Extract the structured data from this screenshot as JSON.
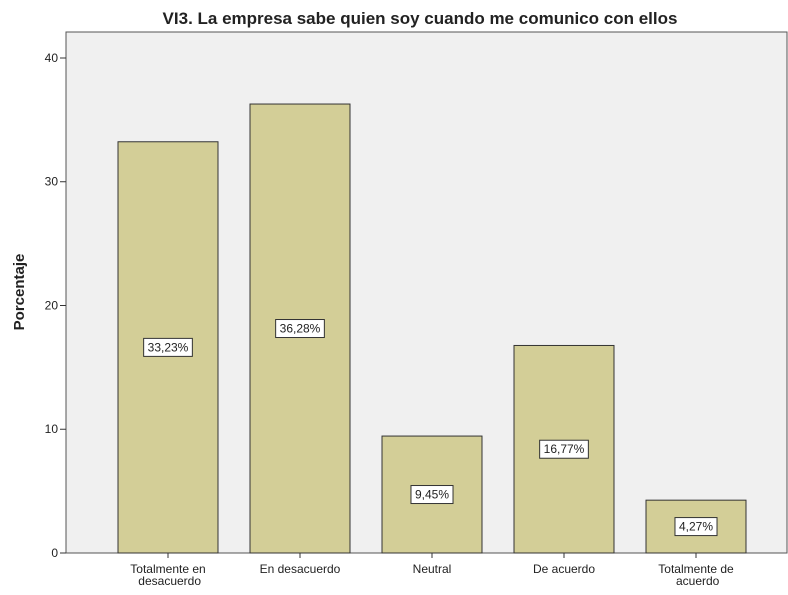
{
  "chart_data": {
    "type": "bar",
    "title": "VI3. La empresa sabe quien soy cuando me comunico con ellos",
    "y_label": "Porcentaje",
    "categories": [
      "Totalmente en desacuerdo",
      "En desacuerdo",
      "Neutral",
      "De acuerdo",
      "Totalmente de acuerdo"
    ],
    "values": [
      33.23,
      36.28,
      9.45,
      16.77,
      4.27
    ],
    "value_labels": [
      "33,23%",
      "36,28%",
      "9,45%",
      "16,77%",
      "4,27%"
    ],
    "color": "#d3ce97",
    "ylim": [
      0,
      42.1
    ],
    "yticks": [
      0,
      10,
      20,
      30,
      40
    ],
    "grid": false
  }
}
